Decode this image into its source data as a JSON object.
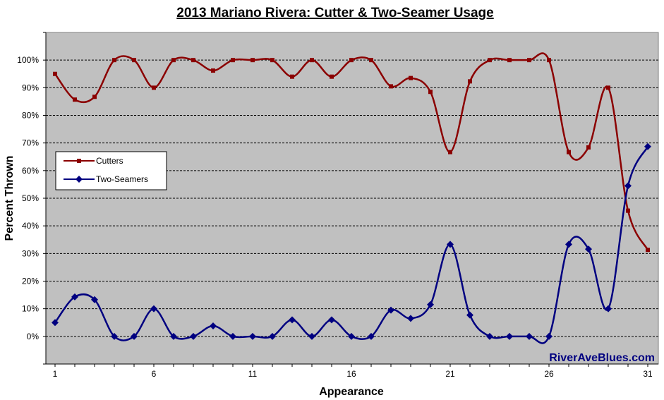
{
  "chart_data": {
    "type": "line",
    "title": "2013 Mariano Rivera: Cutter & Two-Seamer Usage",
    "xlabel": "Appearance",
    "ylabel": "Percent Thrown",
    "xlim": [
      1,
      31
    ],
    "ylim": [
      -0.1,
      1.1
    ],
    "x_tick_labels": [
      "1",
      "6",
      "11",
      "16",
      "21",
      "26",
      "31"
    ],
    "y_tick_labels": [
      "0%",
      "10%",
      "20%",
      "30%",
      "40%",
      "50%",
      "60%",
      "70%",
      "80%",
      "90%",
      "100%"
    ],
    "grid": "horizontal dashed",
    "legend_position": "left-middle",
    "x": [
      1,
      2,
      3,
      4,
      5,
      6,
      7,
      8,
      9,
      10,
      11,
      12,
      13,
      14,
      15,
      16,
      17,
      18,
      19,
      20,
      21,
      22,
      23,
      24,
      25,
      26,
      27,
      28,
      29,
      30,
      31
    ],
    "series": [
      {
        "name": "Cutters",
        "color": "#8b0000",
        "values": [
          0.95,
          0.857,
          0.867,
          1.0,
          1.0,
          0.9,
          1.0,
          1.0,
          0.962,
          1.0,
          1.0,
          1.0,
          0.94,
          1.0,
          0.94,
          1.0,
          1.0,
          0.905,
          0.935,
          0.885,
          0.667,
          0.923,
          1.0,
          1.0,
          1.0,
          1.0,
          0.667,
          0.684,
          0.9,
          0.455,
          0.313
        ]
      },
      {
        "name": "Two-Seamers",
        "color": "#000080",
        "values": [
          0.05,
          0.143,
          0.133,
          0.0,
          0.0,
          0.1,
          0.0,
          0.0,
          0.038,
          0.0,
          0.0,
          0.0,
          0.06,
          0.0,
          0.06,
          0.0,
          0.0,
          0.095,
          0.065,
          0.115,
          0.333,
          0.077,
          0.0,
          0.0,
          0.0,
          0.0,
          0.333,
          0.316,
          0.1,
          0.545,
          0.687
        ]
      }
    ]
  },
  "credit": "RiverAveBlues.com"
}
